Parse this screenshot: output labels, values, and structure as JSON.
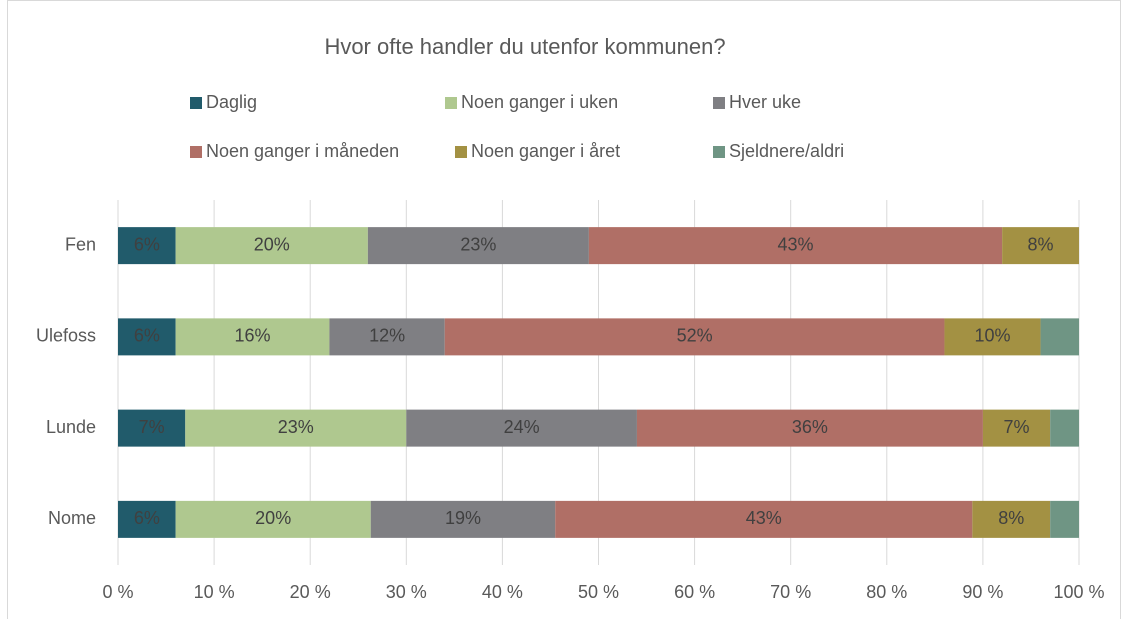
{
  "chart_data": {
    "type": "stacked-barh",
    "title": "Hvor ofte handler du utenfor kommunen?",
    "categories": [
      "Fen",
      "Ulefoss",
      "Lunde",
      "Nome"
    ],
    "series": [
      {
        "name": "Daglig",
        "color": "#215b6b",
        "values": [
          6,
          6,
          7,
          6
        ],
        "value_labels": [
          "6%",
          "6%",
          "7%",
          "6%"
        ]
      },
      {
        "name": "Noen ganger i uken",
        "color": "#afc88f",
        "values": [
          20,
          16,
          23,
          20.3
        ],
        "value_labels": [
          "20%",
          "16%",
          "23%",
          "20%"
        ]
      },
      {
        "name": "Hver uke",
        "color": "#7f7f83",
        "values": [
          23,
          12,
          24,
          19.2
        ],
        "value_labels": [
          "23%",
          "12%",
          "24%",
          "19%"
        ]
      },
      {
        "name": "Noen ganger i måneden",
        "color": "#b06f66",
        "values": [
          43,
          52,
          36,
          43.4
        ],
        "value_labels": [
          "43%",
          "52%",
          "36%",
          "43%"
        ]
      },
      {
        "name": "Noen ganger i året",
        "color": "#a39143",
        "values": [
          8,
          10,
          7,
          8.1
        ],
        "value_labels": [
          "8%",
          "10%",
          "7%",
          "8%"
        ]
      },
      {
        "name": "Sjeldnere/aldri",
        "color": "#6f9584",
        "values": [
          0,
          4,
          3,
          3
        ]
      }
    ],
    "xlim": [
      0,
      100
    ],
    "xticks": [
      {
        "value": 0,
        "label": "0 %"
      },
      {
        "value": 10,
        "label": "10 %"
      },
      {
        "value": 20,
        "label": "20 %"
      },
      {
        "value": 30,
        "label": "30 %"
      },
      {
        "value": 40,
        "label": "40 %"
      },
      {
        "value": 50,
        "label": "50 %"
      },
      {
        "value": 60,
        "label": "60 %"
      },
      {
        "value": 70,
        "label": "70 %"
      },
      {
        "value": 80,
        "label": "80 %"
      },
      {
        "value": 90,
        "label": "90 %"
      },
      {
        "value": 100,
        "label": "100 %"
      }
    ],
    "grid": true,
    "legend": "top"
  }
}
